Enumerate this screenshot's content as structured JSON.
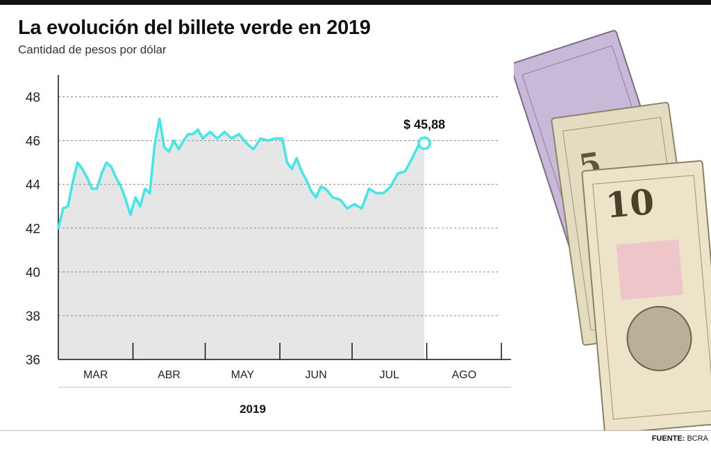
{
  "title": "La evolución del billete verde en 2019",
  "subtitle": "Cantidad de pesos por dólar",
  "source": {
    "label": "FUENTE:",
    "value": "BCRA"
  },
  "illustration": {
    "icon": "dollar-bills-icon",
    "text": "5 10 50"
  },
  "colors": {
    "line": "#3ee8e8",
    "area": "#e6e6e6",
    "grid": "#888888",
    "axis": "#111111"
  },
  "chart_data": {
    "type": "area",
    "title": "La evolución del billete verde en 2019",
    "subtitle": "Cantidad de pesos por dólar",
    "year_label": "2019",
    "ylim": [
      36,
      49
    ],
    "yticks": [
      36,
      38,
      40,
      42,
      44,
      46,
      48
    ],
    "months": [
      "MAR",
      "ABR",
      "MAY",
      "JUN",
      "JUL",
      "AGO"
    ],
    "last_value_label": "$ 45,88",
    "grid": "horizontal-dashed",
    "series": [
      {
        "x": [
          "2019-03-01",
          "2019-03-03",
          "2019-03-05",
          "2019-03-07",
          "2019-03-09",
          "2019-03-11",
          "2019-03-13",
          "2019-03-15",
          "2019-03-17",
          "2019-03-19",
          "2019-03-21",
          "2019-03-23",
          "2019-03-25",
          "2019-03-27",
          "2019-03-29",
          "2019-03-31",
          "2019-04-02",
          "2019-04-04",
          "2019-04-06",
          "2019-04-08",
          "2019-04-10",
          "2019-04-12",
          "2019-04-14",
          "2019-04-16",
          "2019-04-18",
          "2019-04-20",
          "2019-04-22",
          "2019-04-24",
          "2019-04-26",
          "2019-04-28",
          "2019-04-30",
          "2019-05-03",
          "2019-05-06",
          "2019-05-09",
          "2019-05-12",
          "2019-05-15",
          "2019-05-18",
          "2019-05-21",
          "2019-05-24",
          "2019-05-27",
          "2019-05-30",
          "2019-06-02",
          "2019-06-04",
          "2019-06-06",
          "2019-06-08",
          "2019-06-10",
          "2019-06-12",
          "2019-06-14",
          "2019-06-16",
          "2019-06-18",
          "2019-06-20",
          "2019-06-23",
          "2019-06-26",
          "2019-06-29",
          "2019-07-02",
          "2019-07-05",
          "2019-07-08",
          "2019-07-11",
          "2019-07-14",
          "2019-07-17",
          "2019-07-20",
          "2019-07-23",
          "2019-07-26",
          "2019-07-29",
          "2019-07-31"
        ],
        "y": [
          42.0,
          42.9,
          43.0,
          44.1,
          45.0,
          44.7,
          44.3,
          43.8,
          43.8,
          44.5,
          45.0,
          44.8,
          44.3,
          43.9,
          43.3,
          42.6,
          43.4,
          43.0,
          43.8,
          43.6,
          45.8,
          47.0,
          45.7,
          45.5,
          46.0,
          45.6,
          46.0,
          46.3,
          46.3,
          46.5,
          46.1,
          46.4,
          46.1,
          46.4,
          46.1,
          46.3,
          45.9,
          45.6,
          46.1,
          46.0,
          46.1,
          46.1,
          45.0,
          44.7,
          45.2,
          44.6,
          44.2,
          43.7,
          43.4,
          43.9,
          43.8,
          43.4,
          43.3,
          42.9,
          43.1,
          42.9,
          43.8,
          43.6,
          43.6,
          43.9,
          44.5,
          44.6,
          45.2,
          45.88,
          45.88
        ]
      }
    ]
  }
}
